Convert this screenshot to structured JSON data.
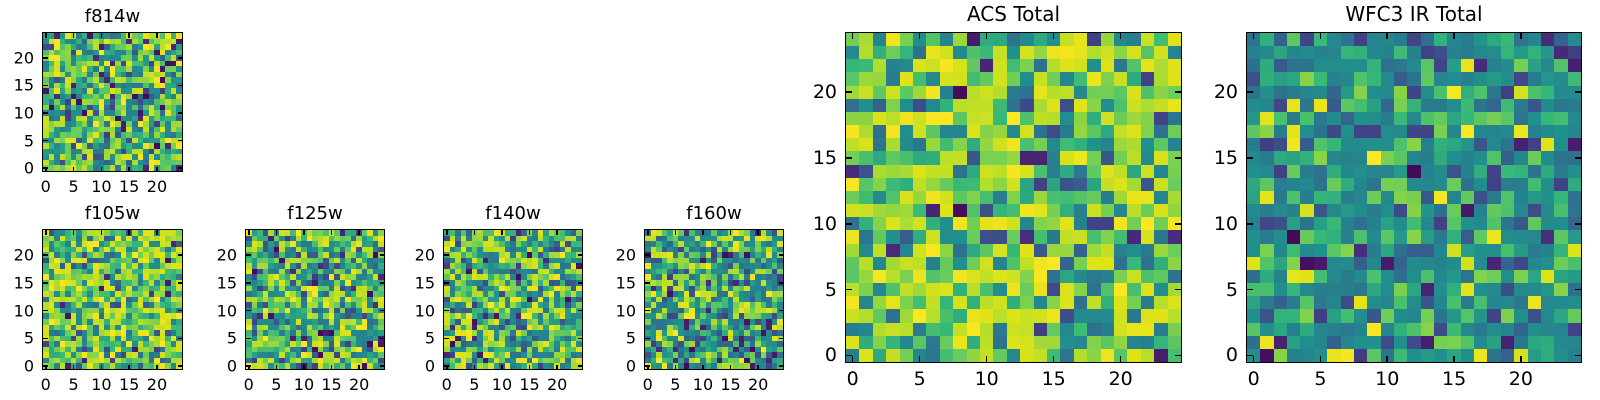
{
  "figure": {
    "background": "#ffffff",
    "text_color": "#000000",
    "spine_color": "#000000"
  },
  "chart_data": {
    "type": "heatmap",
    "layout_note": "7 panels: small f814w top-left; small f105w/f125w/f140w/f160w in bottom row; two large panels ACS Total and WFC3 IR Total on the right",
    "colormap": "viridis",
    "colormap_stops": [
      {
        "t": 0.0,
        "c": "#440154"
      },
      {
        "t": 0.1,
        "c": "#482878"
      },
      {
        "t": 0.2,
        "c": "#3e4a89"
      },
      {
        "t": 0.3,
        "c": "#31688e"
      },
      {
        "t": 0.4,
        "c": "#26828e"
      },
      {
        "t": 0.5,
        "c": "#21918c"
      },
      {
        "t": 0.6,
        "c": "#35b779"
      },
      {
        "t": 0.7,
        "c": "#6dcd59"
      },
      {
        "t": 0.8,
        "c": "#b5de2b"
      },
      {
        "t": 0.9,
        "c": "#dfe318"
      },
      {
        "t": 1.0,
        "c": "#fde725"
      }
    ],
    "grid_size": 25,
    "x_ticks": [
      0,
      5,
      10,
      15,
      20
    ],
    "y_ticks": [
      0,
      5,
      10,
      15,
      20
    ],
    "axis_range": [
      -0.5,
      24.5
    ],
    "value_range": [
      0,
      1
    ],
    "cells_note": "Each panel is a 25x25 field of random noise; values are reproduced deterministically from the seed and color-mix distribution below (fractions of dark-purple, blue, teal, yellow cells and the green base-value range read from the pixels).",
    "panels": [
      {
        "id": "f814w",
        "title": "f814w",
        "size": "small",
        "seed": 8141,
        "dist": {
          "dark": 0.04,
          "blue": 0.07,
          "teal": 0.24,
          "yellow": 0.09,
          "base": [
            0.5,
            0.86
          ]
        }
      },
      {
        "id": "f105w",
        "title": "f105w",
        "size": "small",
        "seed": 1051,
        "dist": {
          "dark": 0.03,
          "blue": 0.05,
          "teal": 0.19,
          "yellow": 0.13,
          "base": [
            0.55,
            0.9
          ]
        }
      },
      {
        "id": "f125w",
        "title": "f125w",
        "size": "small",
        "seed": 1251,
        "dist": {
          "dark": 0.05,
          "blue": 0.09,
          "teal": 0.23,
          "yellow": 0.09,
          "base": [
            0.5,
            0.86
          ]
        }
      },
      {
        "id": "f140w",
        "title": "f140w",
        "size": "small",
        "seed": 1401,
        "dist": {
          "dark": 0.03,
          "blue": 0.07,
          "teal": 0.25,
          "yellow": 0.11,
          "base": [
            0.52,
            0.88
          ]
        }
      },
      {
        "id": "f160w",
        "title": "f160w",
        "size": "small",
        "seed": 1601,
        "dist": {
          "dark": 0.05,
          "blue": 0.1,
          "teal": 0.29,
          "yellow": 0.1,
          "base": [
            0.48,
            0.85
          ]
        }
      },
      {
        "id": "acs_total",
        "title": "ACS Total",
        "size": "large",
        "seed": 42,
        "dist": {
          "dark": 0.02,
          "blue": 0.05,
          "teal": 0.2,
          "yellow": 0.13,
          "base": [
            0.55,
            0.9
          ]
        }
      },
      {
        "id": "wfc3_ir_total",
        "title": "WFC3 IR Total",
        "size": "large",
        "seed": 77,
        "dist": {
          "dark": 0.035,
          "blue": 0.14,
          "teal": 0.35,
          "yellow": 0.06,
          "base": [
            0.42,
            0.74
          ]
        }
      }
    ]
  }
}
